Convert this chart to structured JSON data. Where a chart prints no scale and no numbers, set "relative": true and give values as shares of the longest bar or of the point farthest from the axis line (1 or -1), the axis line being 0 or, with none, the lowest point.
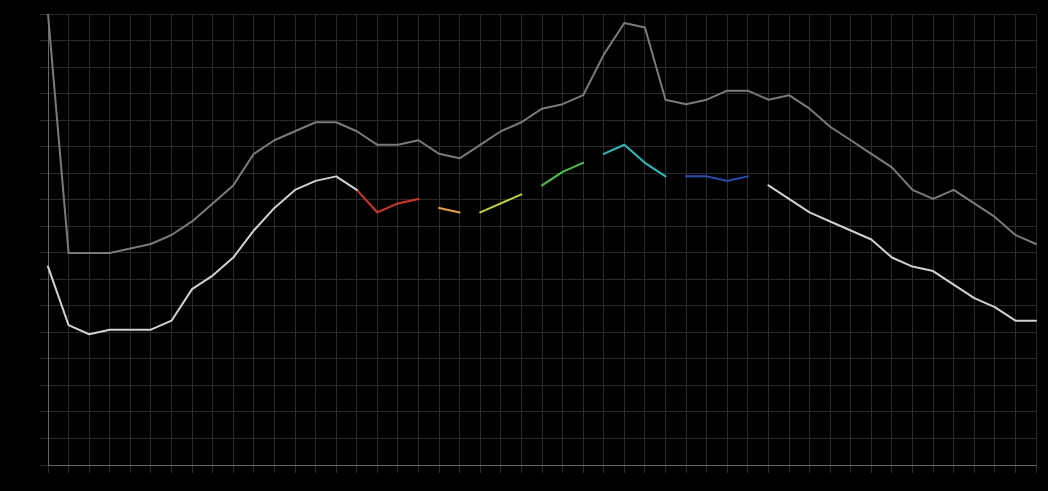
{
  "chart_data": {
    "type": "line",
    "relative": true,
    "grid": true,
    "legend": false,
    "marker": "none",
    "line_style": "solid",
    "categories": [
      null,
      null,
      null,
      null,
      null,
      null,
      null,
      null,
      null,
      null,
      null,
      null,
      null,
      null,
      null,
      null,
      null,
      null,
      null,
      null,
      null,
      null,
      null,
      null,
      null,
      null,
      null,
      null,
      null,
      null,
      null,
      null,
      null,
      null,
      null,
      null,
      null,
      null,
      null,
      null,
      null,
      null,
      null,
      null,
      null,
      null,
      null,
      null,
      null
    ],
    "series": [
      {
        "color": "#7a7a7a",
        "values": [
          1.0,
          0.47,
          0.47,
          0.47,
          0.48,
          0.49,
          0.51,
          0.54,
          0.58,
          0.62,
          0.69,
          0.72,
          0.74,
          0.76,
          0.76,
          0.74,
          0.71,
          0.71,
          0.72,
          0.69,
          0.68,
          0.71,
          0.74,
          0.76,
          0.79,
          0.8,
          0.82,
          0.91,
          0.98,
          0.97,
          0.81,
          0.8,
          0.81,
          0.83,
          0.83,
          0.81,
          0.82,
          0.79,
          0.75,
          0.72,
          0.69,
          0.66,
          0.61,
          0.59,
          0.61,
          0.58,
          0.55,
          0.51,
          0.49
        ]
      },
      {
        "color": "#d0d0d0",
        "values": [
          0.44,
          0.31,
          0.29,
          0.3,
          0.3,
          0.3,
          0.32,
          0.39,
          0.42,
          0.46,
          0.52,
          0.57,
          0.61,
          0.63,
          0.64,
          0.61,
          null,
          null,
          null,
          null,
          null,
          null,
          null,
          null,
          null,
          null,
          null,
          null,
          null,
          null,
          null,
          null,
          null,
          null,
          null,
          null,
          null,
          null,
          null,
          null,
          null,
          null,
          null,
          null,
          null,
          null,
          null,
          null,
          null
        ]
      },
      {
        "color": "#e03020",
        "values": [
          null,
          null,
          null,
          null,
          null,
          null,
          null,
          null,
          null,
          null,
          null,
          null,
          null,
          null,
          null,
          0.61,
          0.56,
          0.58,
          0.59,
          null,
          null,
          null,
          null,
          null,
          null,
          null,
          null,
          null,
          null,
          null,
          null,
          null,
          null,
          null,
          null,
          null,
          null,
          null,
          null,
          null,
          null,
          null,
          null,
          null,
          null,
          null,
          null,
          null,
          null
        ]
      },
      {
        "color": "#f0a020",
        "values": [
          null,
          null,
          null,
          null,
          null,
          null,
          null,
          null,
          null,
          null,
          null,
          null,
          null,
          null,
          null,
          null,
          null,
          null,
          null,
          0.57,
          0.56,
          null,
          null,
          null,
          null,
          null,
          null,
          null,
          null,
          null,
          null,
          null,
          null,
          null,
          null,
          null,
          null,
          null,
          null,
          null,
          null,
          null,
          null,
          null,
          null,
          null,
          null,
          null,
          null
        ]
      },
      {
        "color": "#c8d820",
        "values": [
          null,
          null,
          null,
          null,
          null,
          null,
          null,
          null,
          null,
          null,
          null,
          null,
          null,
          null,
          null,
          null,
          null,
          null,
          null,
          null,
          null,
          0.56,
          0.58,
          0.6,
          null,
          null,
          null,
          null,
          null,
          null,
          null,
          null,
          null,
          null,
          null,
          null,
          null,
          null,
          null,
          null,
          null,
          null,
          null,
          null,
          null,
          null,
          null,
          null,
          null
        ]
      },
      {
        "color": "#40c840",
        "values": [
          null,
          null,
          null,
          null,
          null,
          null,
          null,
          null,
          null,
          null,
          null,
          null,
          null,
          null,
          null,
          null,
          null,
          null,
          null,
          null,
          null,
          null,
          null,
          null,
          0.62,
          0.65,
          0.67,
          null,
          null,
          null,
          null,
          null,
          null,
          null,
          null,
          null,
          null,
          null,
          null,
          null,
          null,
          null,
          null,
          null,
          null,
          null,
          null,
          null,
          null
        ]
      },
      {
        "color": "#20c0c0",
        "values": [
          null,
          null,
          null,
          null,
          null,
          null,
          null,
          null,
          null,
          null,
          null,
          null,
          null,
          null,
          null,
          null,
          null,
          null,
          null,
          null,
          null,
          null,
          null,
          null,
          null,
          null,
          null,
          0.69,
          0.71,
          0.67,
          0.64,
          null,
          null,
          null,
          null,
          null,
          null,
          null,
          null,
          null,
          null,
          null,
          null,
          null,
          null,
          null,
          null,
          null,
          null
        ]
      },
      {
        "color": "#2050c8",
        "values": [
          null,
          null,
          null,
          null,
          null,
          null,
          null,
          null,
          null,
          null,
          null,
          null,
          null,
          null,
          null,
          null,
          null,
          null,
          null,
          null,
          null,
          null,
          null,
          null,
          null,
          null,
          null,
          null,
          null,
          null,
          null,
          0.64,
          0.64,
          0.63,
          0.64,
          null,
          null,
          null,
          null,
          null,
          null,
          null,
          null,
          null,
          null,
          null,
          null,
          null,
          null
        ]
      },
      {
        "color": "#d0d0d0",
        "values": [
          null,
          null,
          null,
          null,
          null,
          null,
          null,
          null,
          null,
          null,
          null,
          null,
          null,
          null,
          null,
          null,
          null,
          null,
          null,
          null,
          null,
          null,
          null,
          null,
          null,
          null,
          null,
          null,
          null,
          null,
          null,
          null,
          null,
          null,
          null,
          0.62,
          0.59,
          0.56,
          0.54,
          0.52,
          0.5,
          0.46,
          0.44,
          0.43,
          0.4,
          0.37,
          0.35,
          0.32,
          0.32
        ]
      }
    ]
  }
}
